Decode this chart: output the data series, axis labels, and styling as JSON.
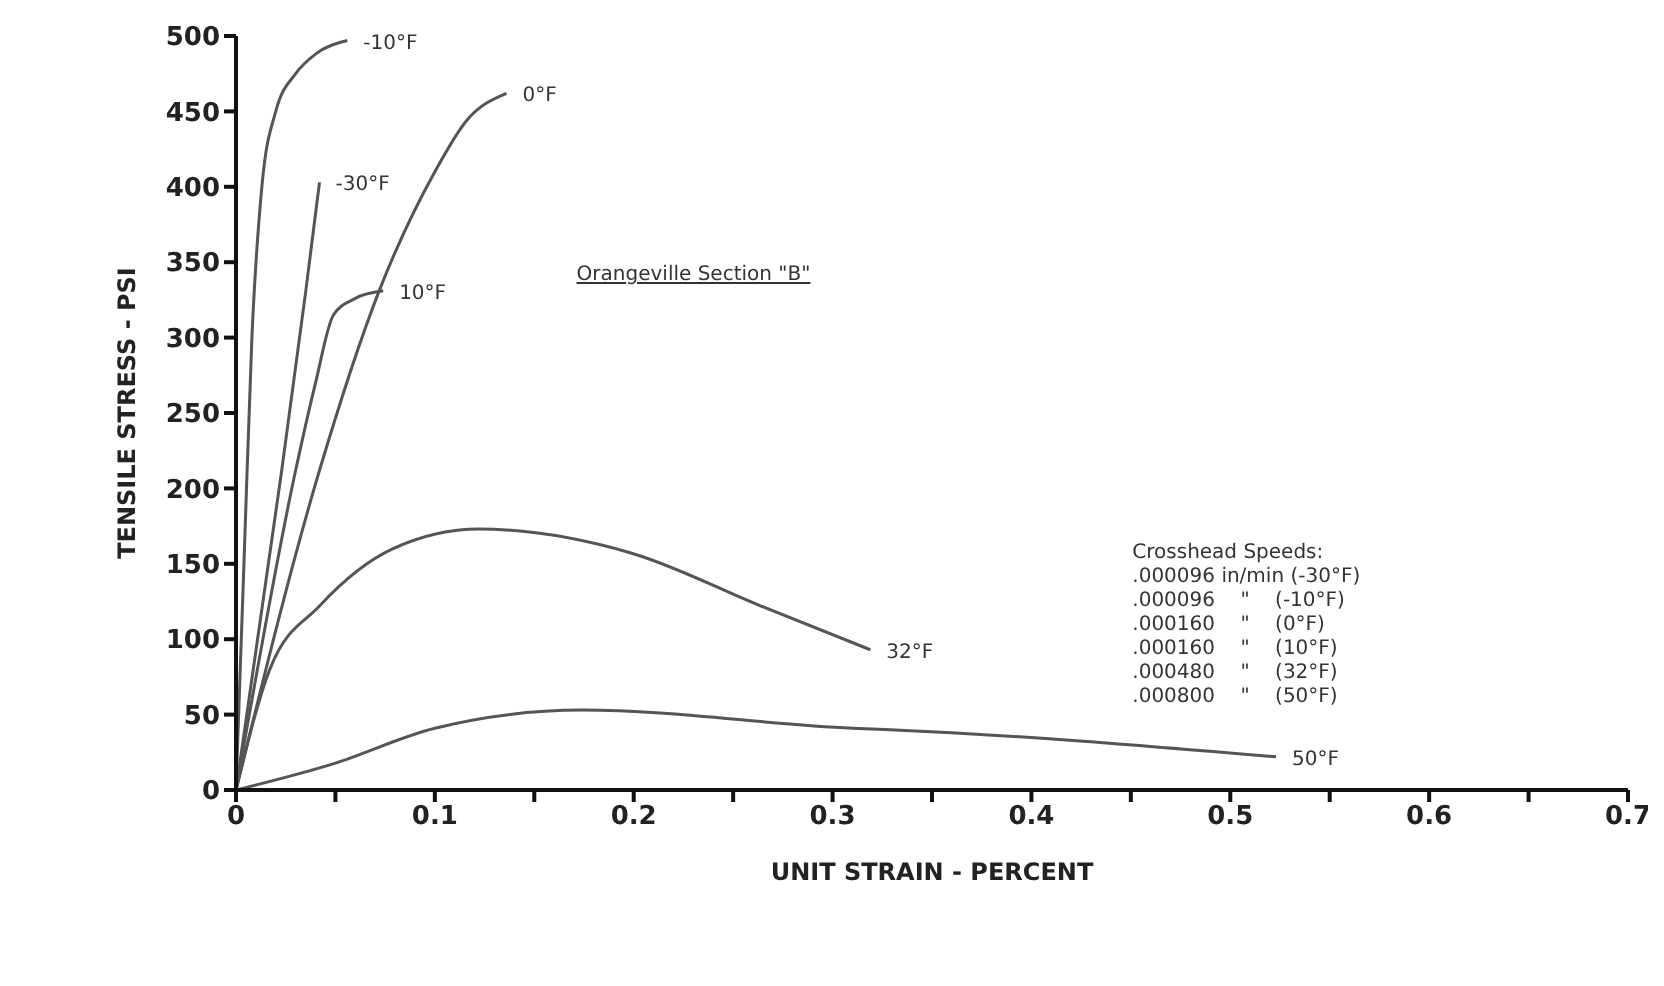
{
  "chart_data": {
    "type": "line",
    "title": "Orangeville Section \"B\"",
    "xlabel": "UNIT STRAIN - PERCENT",
    "ylabel": "TENSILE STRESS - PSI",
    "xlim": [
      0,
      0.7
    ],
    "xticks": [
      0,
      {
        "value": 0.05,
        "label": null
      },
      0.1,
      {
        "value": 0.15,
        "label": null
      },
      0.2,
      {
        "value": 0.25,
        "label": null
      },
      0.3,
      {
        "value": 0.35,
        "label": null
      },
      0.4,
      {
        "value": 0.45,
        "label": null
      },
      0.5,
      {
        "value": 0.55,
        "label": null
      },
      0.6,
      {
        "value": 0.65,
        "label": null
      },
      0.7
    ],
    "ylim": [
      0,
      500
    ],
    "yticks": [
      0,
      50,
      100,
      150,
      200,
      250,
      300,
      350,
      400,
      450,
      500
    ],
    "marker": "none",
    "line_style": "solid",
    "series": [
      {
        "name": "-10°F",
        "color": "#555555",
        "x": [
          0,
          0.004,
          0.008,
          0.013,
          0.02,
          0.03,
          0.04,
          0.056
        ],
        "values": [
          0,
          150,
          300,
          400,
          450,
          475,
          488,
          497
        ]
      },
      {
        "name": "-30°F",
        "color": "#555555",
        "x": [
          0,
          0.023,
          0.035,
          0.042
        ],
        "values": [
          0,
          212,
          330,
          403
        ]
      },
      {
        "name": "0°F",
        "color": "#555555",
        "x": [
          0,
          0.042,
          0.072,
          0.1,
          0.116,
          0.136
        ],
        "values": [
          0,
          212,
          331,
          410,
          444,
          462
        ]
      },
      {
        "name": "10°F",
        "color": "#555555",
        "x": [
          0,
          0.03,
          0.04,
          0.049,
          0.06,
          0.074
        ],
        "values": [
          0,
          212,
          270,
          315,
          326,
          331
        ]
      },
      {
        "name": "32°F",
        "color": "#555555",
        "x": [
          0,
          0.017,
          0.042,
          0.079,
          0.122,
          0.199,
          0.264,
          0.319
        ],
        "values": [
          0,
          80,
          122,
          160,
          173,
          157,
          122,
          93
        ]
      },
      {
        "name": "50°F",
        "color": "#555555",
        "x": [
          0,
          0.048,
          0.1,
          0.174,
          0.31,
          0.329,
          0.523
        ],
        "values": [
          0,
          17,
          41,
          53,
          41,
          40,
          22
        ]
      }
    ],
    "annotations": [
      "Crosshead Speeds:\n.000096 in/min (-30°F)\n.000096    \"    (-10°F)\n.000160    \"    (0°F)\n.000160    \"    (10°F)\n.000480    \"    (32°F)\n.000800    \"    (50°F)"
    ]
  }
}
